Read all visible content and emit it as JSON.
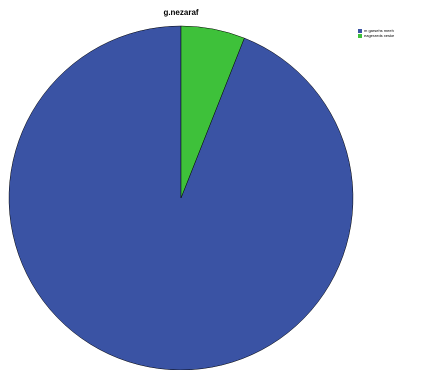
{
  "chart_data": {
    "type": "pie",
    "title": "g.nezaraf",
    "categories": [
      "m garsehs meeh",
      "eagerzeds xeske"
    ],
    "values": [
      94,
      6
    ],
    "colors": [
      "#3a53a4",
      "#3ec13a"
    ],
    "start_angle_deg": 0,
    "direction": "counter-clockwise",
    "legend_placement": "top-right"
  }
}
